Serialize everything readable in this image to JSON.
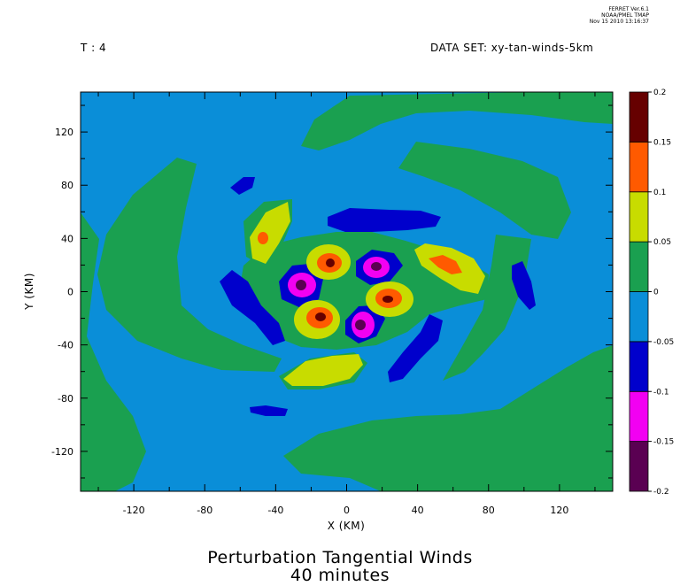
{
  "header": {
    "time_label": "T : 4",
    "dataset_label": "DATA SET: xy-tan-winds-5km",
    "stamp_line1": "FERRET Ver.6.1",
    "stamp_line2": "NOAA/PMEL TMAP",
    "stamp_line3": "Nov 15 2010 13:16:37"
  },
  "title_line1": "Perturbation Tangential Winds",
  "title_line2": "40 minutes",
  "colors": {
    "c_m020_m015": "#5a0052",
    "c_m015_m010": "#f200f2",
    "c_m010_m005": "#0000cc",
    "c_m005_000": "#0a8ed8",
    "c_000_005": "#1aa050",
    "c_005_010": "#c8dc00",
    "c_010_015": "#ff5a00",
    "c_015_020": "#660000"
  },
  "chart_data": {
    "type": "heatmap",
    "title": "Perturbation Tangential Winds",
    "subtitle": "40 minutes",
    "xlabel": "X (KM)",
    "ylabel": "Y (KM)",
    "xlim": [
      -150,
      150
    ],
    "ylim": [
      -150,
      150
    ],
    "x_ticks": [
      -120,
      -80,
      -40,
      0,
      40,
      80,
      120
    ],
    "y_ticks": [
      -120,
      -80,
      -40,
      0,
      40,
      80,
      120
    ],
    "x_tick_labels": [
      "-120",
      "-80",
      "-40",
      "0",
      "40",
      "80",
      "120"
    ],
    "y_tick_labels": [
      "-120",
      "-80",
      "-40",
      "0",
      "40",
      "80",
      "120"
    ],
    "colorbar_levels": [
      -0.2,
      -0.15,
      -0.1,
      -0.05,
      0,
      0.05,
      0.1,
      0.15,
      0.2
    ],
    "colorbar_labels": [
      "-0.2",
      "-0.15",
      "-0.1",
      "-0.05",
      "0",
      "0.05",
      "0.1",
      "0.15",
      "0.2"
    ],
    "background_level": "-0.05 to 0",
    "features": [
      {
        "cx": 20,
        "cy": 22,
        "level": -0.175
      },
      {
        "cx": 10,
        "cy": -25,
        "level": -0.175
      },
      {
        "cx": -27,
        "cy": 4,
        "level": -0.175
      },
      {
        "cx": -12,
        "cy": 22,
        "level": 0.175
      },
      {
        "cx": -15,
        "cy": -20,
        "level": 0.175
      },
      {
        "cx": 30,
        "cy": -5,
        "level": 0.175
      },
      {
        "cx": -47,
        "cy": 40,
        "level": 0.125
      },
      {
        "cx": 52,
        "cy": 22,
        "level": 0.125
      }
    ]
  }
}
